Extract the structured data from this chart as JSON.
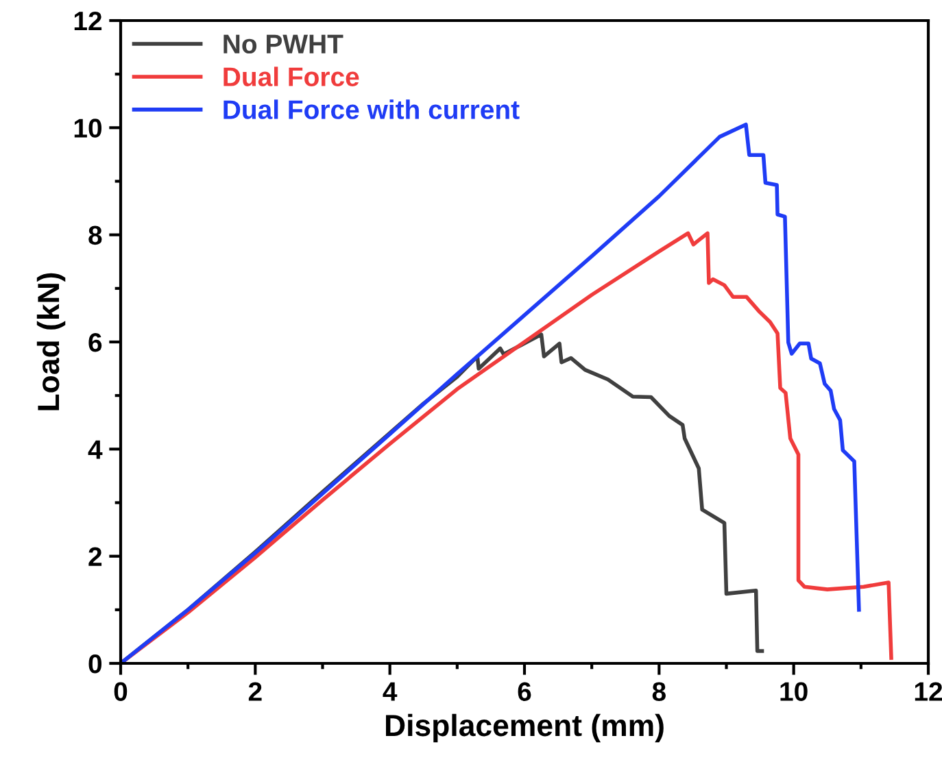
{
  "chart_data": {
    "type": "line",
    "xlabel": "Displacement (mm)",
    "ylabel": "Load (kN)",
    "xlim": [
      0,
      12
    ],
    "ylim": [
      0,
      12
    ],
    "xticks": [
      0,
      2,
      4,
      6,
      8,
      10,
      12
    ],
    "yticks": [
      0,
      2,
      4,
      6,
      8,
      10,
      12
    ],
    "grid": false,
    "legend": "top left",
    "marker": "none",
    "line_style": "solid",
    "series": [
      {
        "name": "No PWHT",
        "color": "#404040",
        "x": [
          0,
          1,
          2,
          3,
          4,
          4.5,
          5,
          5.3,
          5.32,
          5.64,
          5.69,
          6.25,
          6.29,
          6.52,
          6.55,
          6.69,
          6.9,
          7.24,
          7.61,
          7.88,
          8.15,
          8.35,
          8.38,
          8.59,
          8.64,
          8.97,
          9.0,
          9.44,
          9.46,
          9.53
        ],
        "values": [
          0,
          1.0,
          2.08,
          3.2,
          4.3,
          4.85,
          5.35,
          5.73,
          5.5,
          5.88,
          5.77,
          6.14,
          5.73,
          5.97,
          5.62,
          5.7,
          5.48,
          5.3,
          4.98,
          4.97,
          4.62,
          4.45,
          4.2,
          3.64,
          2.87,
          2.62,
          1.3,
          1.36,
          0.23,
          0.23
        ]
      },
      {
        "name": "Dual Force",
        "color": "#f03c3c",
        "x": [
          0,
          1,
          2,
          3,
          4,
          5,
          6,
          7,
          8,
          8.43,
          8.51,
          8.72,
          8.74,
          8.8,
          8.97,
          9.1,
          9.3,
          9.48,
          9.65,
          9.76,
          9.8,
          9.88,
          9.95,
          10.07,
          10.07,
          10.16,
          10.5,
          11.04,
          11.41,
          11.45
        ],
        "values": [
          0,
          0.95,
          1.98,
          3.05,
          4.1,
          5.12,
          6.0,
          6.88,
          7.69,
          8.03,
          7.82,
          8.03,
          7.1,
          7.17,
          7.06,
          6.84,
          6.84,
          6.58,
          6.37,
          6.16,
          5.14,
          5.05,
          4.2,
          3.9,
          1.55,
          1.43,
          1.38,
          1.43,
          1.51,
          0.1
        ]
      },
      {
        "name": "Dual Force with current",
        "color": "#1f3cf5",
        "x": [
          0,
          1,
          2,
          3,
          4,
          5,
          6,
          7,
          8,
          8.9,
          9.29,
          9.34,
          9.55,
          9.58,
          9.75,
          9.76,
          9.87,
          9.92,
          9.97,
          10.09,
          10.22,
          10.26,
          10.39,
          10.46,
          10.55,
          10.6,
          10.69,
          10.73,
          10.9,
          10.97
        ],
        "values": [
          0,
          1.0,
          2.06,
          3.17,
          4.28,
          5.4,
          6.5,
          7.6,
          8.72,
          9.83,
          10.06,
          9.49,
          9.49,
          8.97,
          8.93,
          8.38,
          8.34,
          5.99,
          5.78,
          5.97,
          5.97,
          5.69,
          5.6,
          5.22,
          5.09,
          4.75,
          4.54,
          3.98,
          3.77,
          1.0
        ]
      }
    ]
  }
}
